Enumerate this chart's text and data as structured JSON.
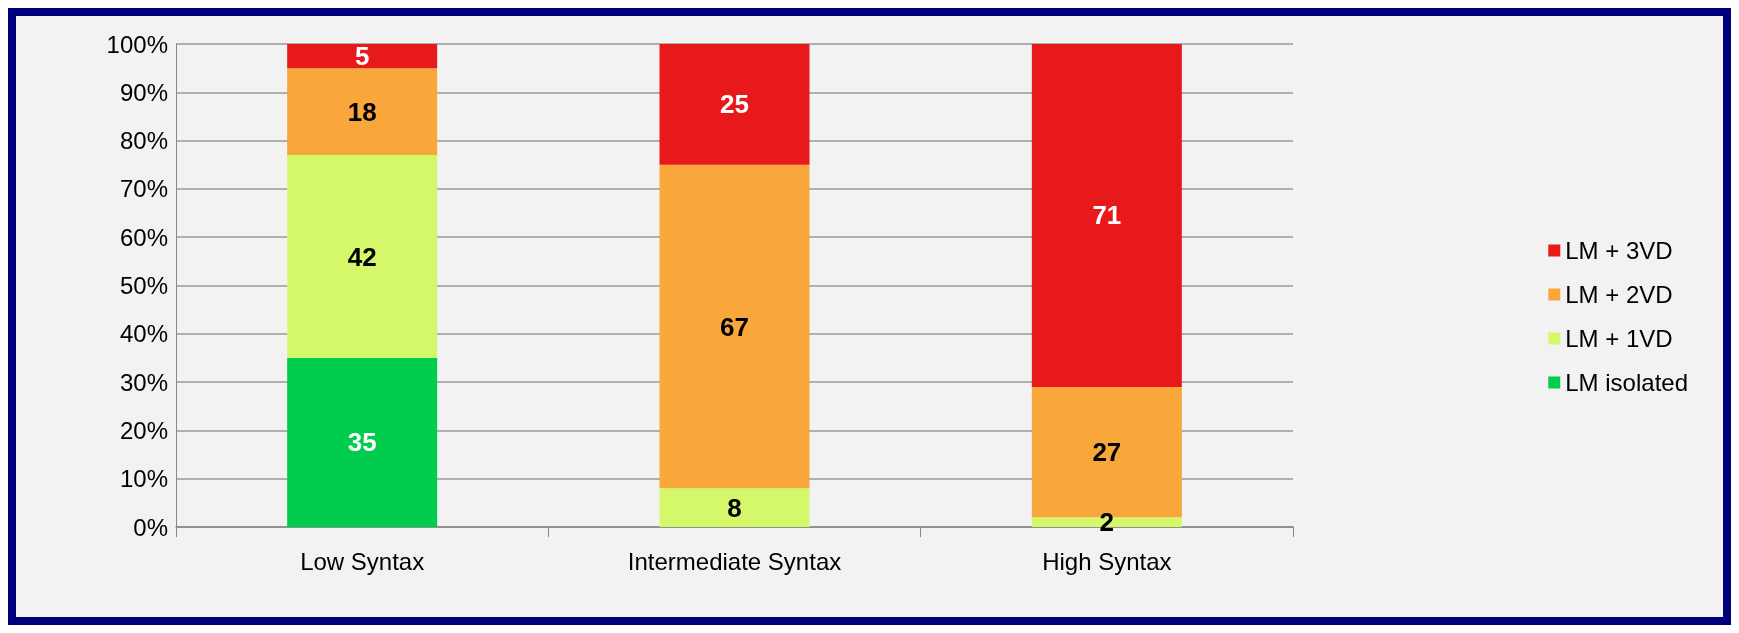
{
  "chart_data": {
    "type": "bar",
    "stacked": true,
    "categories": [
      "Low Syntax",
      "Intermediate Syntax",
      "High Syntax"
    ],
    "series": [
      {
        "name": "LM isolated",
        "color": "#00cc4e",
        "values": [
          35,
          null,
          null
        ]
      },
      {
        "name": "LM + 1VD",
        "color": "#d4f86a",
        "values": [
          42,
          8,
          2
        ]
      },
      {
        "name": "LM + 2VD",
        "color": "#f9a73a",
        "values": [
          18,
          67,
          27
        ]
      },
      {
        "name": "LM + 3VD",
        "color": "#e8191b",
        "values": [
          5,
          25,
          71
        ]
      }
    ],
    "ylim": [
      0,
      100
    ],
    "yticks": [
      {
        "value": 0,
        "label": "0%"
      },
      {
        "value": 10,
        "label": "10%"
      },
      {
        "value": 20,
        "label": "20%"
      },
      {
        "value": 30,
        "label": "30%"
      },
      {
        "value": 40,
        "label": "40%"
      },
      {
        "value": 50,
        "label": "50%"
      },
      {
        "value": 60,
        "label": "60%"
      },
      {
        "value": 70,
        "label": "70%"
      },
      {
        "value": 80,
        "label": "80%"
      },
      {
        "value": 90,
        "label": "90%"
      },
      {
        "value": 100,
        "label": "100%"
      }
    ],
    "grid": "y",
    "legend": "right",
    "data_labels": true
  }
}
